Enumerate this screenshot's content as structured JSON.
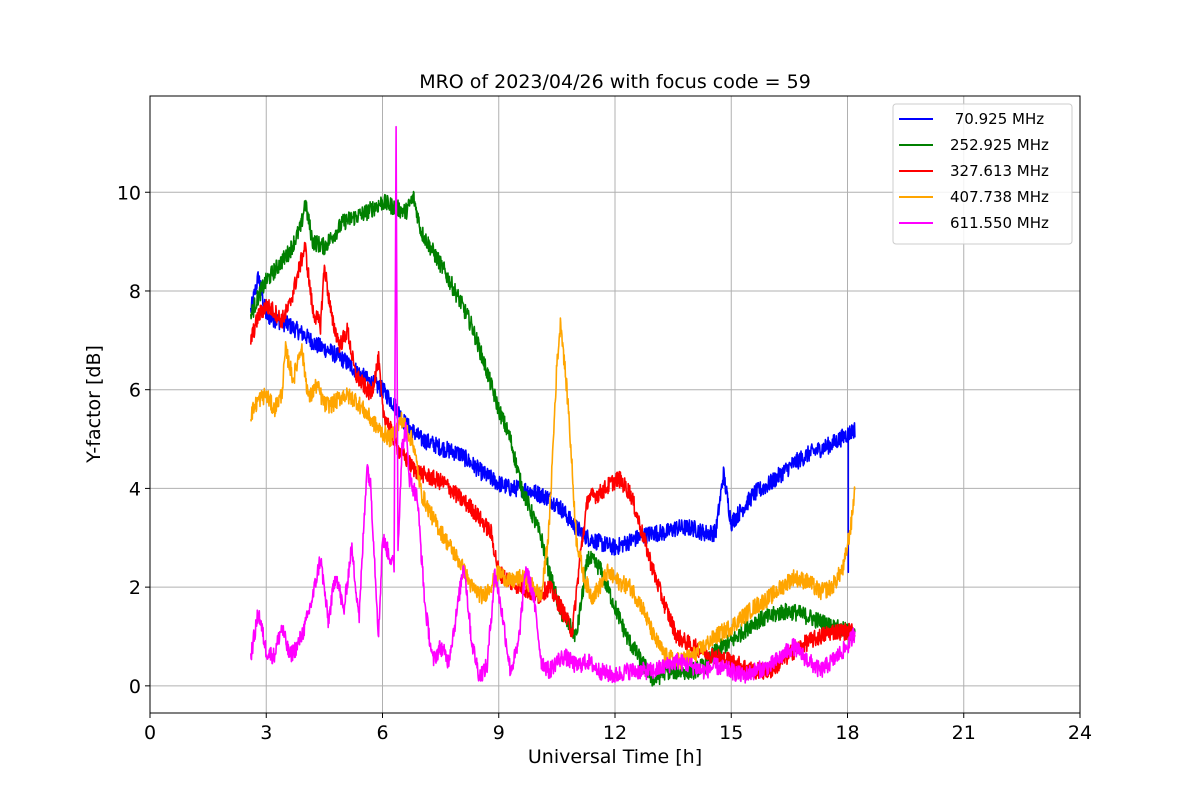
{
  "chart_data": {
    "type": "line",
    "title": "MRO of 2023/04/26 with focus code = 59",
    "xlabel": "Universal Time [h]",
    "ylabel": "Y-factor [dB]",
    "xlim": [
      0,
      24
    ],
    "ylim": [
      -0.55,
      11.95
    ],
    "xticks": [
      0,
      3,
      6,
      9,
      12,
      15,
      18,
      21,
      24
    ],
    "yticks": [
      0,
      2,
      4,
      6,
      8,
      10
    ],
    "grid": true,
    "legend_position": "top-right",
    "series": [
      {
        "name": " 70.925 MHz",
        "color": "#0000ff",
        "dips": true,
        "x": [
          2.6,
          2.8,
          3.0,
          3.3,
          3.6,
          4.0,
          4.3,
          4.6,
          5.0,
          5.3,
          5.6,
          6.0,
          6.3,
          6.6,
          7.0,
          7.3,
          7.6,
          8.0,
          8.3,
          8.6,
          9.0,
          9.3,
          9.6,
          10.0,
          10.3,
          10.6,
          11.0,
          11.3,
          11.6,
          12.0,
          12.3,
          12.6,
          13.0,
          13.3,
          13.6,
          14.0,
          14.3,
          14.6,
          14.8,
          15.0,
          15.3,
          15.6,
          16.0,
          16.3,
          16.6,
          17.0,
          17.3,
          17.6,
          18.0,
          18.2
        ],
        "y": [
          7.6,
          8.3,
          7.5,
          7.4,
          7.3,
          7.1,
          6.9,
          6.8,
          6.6,
          6.4,
          6.2,
          6.0,
          5.7,
          5.3,
          5.0,
          4.9,
          4.8,
          4.7,
          4.5,
          4.3,
          4.1,
          4.0,
          4.0,
          3.9,
          3.8,
          3.6,
          3.2,
          3.0,
          2.9,
          2.8,
          2.9,
          3.0,
          3.1,
          3.1,
          3.2,
          3.2,
          3.1,
          3.1,
          4.3,
          3.3,
          3.6,
          3.9,
          4.1,
          4.3,
          4.5,
          4.7,
          4.8,
          4.9,
          5.1,
          5.2
        ]
      },
      {
        "name": "252.925 MHz",
        "color": "#008000",
        "x": [
          2.6,
          2.8,
          3.0,
          3.3,
          3.6,
          3.9,
          4.0,
          4.2,
          4.5,
          4.8,
          5.0,
          5.3,
          5.6,
          6.0,
          6.3,
          6.6,
          6.8,
          7.0,
          7.3,
          7.6,
          8.0,
          8.3,
          8.6,
          9.0,
          9.3,
          9.6,
          9.9,
          10.1,
          10.3,
          10.6,
          11.0,
          11.3,
          11.6,
          12.0,
          12.3,
          12.6,
          13.0,
          13.3,
          13.6,
          14.0,
          14.3,
          14.6,
          15.0,
          15.3,
          15.6,
          16.0,
          16.3,
          16.6,
          17.0,
          17.3,
          17.6,
          18.0,
          18.2
        ],
        "y": [
          7.5,
          7.9,
          8.2,
          8.5,
          8.8,
          9.3,
          9.8,
          9.0,
          8.9,
          9.2,
          9.4,
          9.5,
          9.6,
          9.8,
          9.7,
          9.6,
          9.9,
          9.2,
          8.8,
          8.4,
          7.8,
          7.3,
          6.6,
          5.6,
          5.0,
          4.0,
          3.4,
          3.0,
          2.3,
          1.5,
          1.0,
          2.6,
          2.4,
          1.6,
          1.0,
          0.6,
          0.1,
          0.3,
          0.3,
          0.3,
          0.4,
          0.7,
          0.9,
          1.1,
          1.3,
          1.4,
          1.5,
          1.5,
          1.4,
          1.3,
          1.2,
          1.1,
          1.0
        ]
      },
      {
        "name": "327.613 MHz",
        "color": "#ff0000",
        "x": [
          2.6,
          2.8,
          3.0,
          3.2,
          3.4,
          3.6,
          3.8,
          4.0,
          4.2,
          4.4,
          4.5,
          4.7,
          4.9,
          5.1,
          5.3,
          5.5,
          5.7,
          5.9,
          6.0,
          6.2,
          6.4,
          6.6,
          6.8,
          7.0,
          7.3,
          7.6,
          8.0,
          8.3,
          8.6,
          8.8,
          9.0,
          9.3,
          9.6,
          9.8,
          10.0,
          10.3,
          10.6,
          10.9,
          11.1,
          11.3,
          11.6,
          11.9,
          12.1,
          12.4,
          12.7,
          13.0,
          13.3,
          13.6,
          14.0,
          14.3,
          14.6,
          15.0,
          15.3,
          15.6,
          16.0,
          16.3,
          16.6,
          17.0,
          17.3,
          17.6,
          18.0,
          18.2
        ],
        "y": [
          7.0,
          7.5,
          7.7,
          7.6,
          7.4,
          7.7,
          8.3,
          8.9,
          7.6,
          7.3,
          8.5,
          7.4,
          6.9,
          7.2,
          6.3,
          6.1,
          5.9,
          6.6,
          5.6,
          5.2,
          4.8,
          4.6,
          4.4,
          4.3,
          4.2,
          4.1,
          3.8,
          3.6,
          3.3,
          3.1,
          2.3,
          2.1,
          2.0,
          1.9,
          1.8,
          2.0,
          1.6,
          1.1,
          2.6,
          3.8,
          3.9,
          4.1,
          4.2,
          3.9,
          3.1,
          2.3,
          1.6,
          1.0,
          0.8,
          0.7,
          0.6,
          0.5,
          0.4,
          0.3,
          0.3,
          0.5,
          0.7,
          0.9,
          1.0,
          1.1,
          1.1,
          1.1
        ]
      },
      {
        "name": "407.738 MHz",
        "color": "#ffa500",
        "x": [
          2.6,
          2.8,
          3.0,
          3.2,
          3.4,
          3.5,
          3.7,
          3.9,
          4.1,
          4.3,
          4.5,
          4.7,
          5.0,
          5.3,
          5.6,
          5.9,
          6.2,
          6.5,
          6.8,
          7.0,
          7.3,
          7.6,
          8.0,
          8.3,
          8.6,
          9.0,
          9.3,
          9.6,
          9.9,
          10.1,
          10.3,
          10.5,
          10.6,
          10.8,
          11.0,
          11.2,
          11.4,
          11.6,
          11.8,
          12.1,
          12.4,
          12.7,
          13.0,
          13.3,
          13.6,
          14.0,
          14.3,
          14.6,
          15.0,
          15.3,
          15.6,
          16.0,
          16.3,
          16.6,
          17.0,
          17.3,
          17.6,
          17.9,
          18.1,
          18.2
        ],
        "y": [
          5.5,
          5.8,
          5.9,
          5.6,
          5.9,
          6.8,
          6.2,
          6.9,
          5.8,
          6.1,
          5.7,
          5.7,
          5.9,
          5.8,
          5.5,
          5.2,
          5.0,
          5.4,
          4.9,
          3.9,
          3.4,
          3.0,
          2.5,
          2.0,
          1.8,
          2.3,
          2.1,
          2.2,
          2.0,
          1.8,
          3.2,
          6.5,
          7.4,
          5.6,
          3.0,
          2.2,
          1.8,
          2.0,
          2.3,
          2.1,
          2.0,
          1.6,
          1.0,
          0.6,
          0.5,
          0.6,
          0.8,
          1.0,
          1.2,
          1.4,
          1.6,
          1.8,
          2.0,
          2.2,
          2.1,
          1.9,
          2.0,
          2.4,
          3.3,
          4.1
        ]
      },
      {
        "name": "611.550 MHz",
        "color": "#ff00ff",
        "x": [
          2.6,
          2.8,
          3.0,
          3.2,
          3.4,
          3.6,
          3.8,
          4.0,
          4.2,
          4.4,
          4.6,
          4.8,
          5.0,
          5.2,
          5.4,
          5.6,
          5.7,
          5.9,
          6.0,
          6.2,
          6.3,
          6.35,
          6.4,
          6.5,
          6.6,
          6.7,
          6.9,
          7.1,
          7.3,
          7.5,
          7.7,
          7.9,
          8.1,
          8.3,
          8.5,
          8.7,
          8.9,
          9.1,
          9.3,
          9.5,
          9.7,
          9.9,
          10.1,
          10.3,
          10.5,
          10.7,
          11.0,
          11.3,
          11.6,
          12.0,
          12.3,
          12.6,
          13.0,
          13.3,
          13.6,
          14.0,
          14.3,
          14.6,
          15.0,
          15.3,
          15.6,
          16.0,
          16.3,
          16.6,
          17.0,
          17.3,
          17.6,
          18.0,
          18.2
        ],
        "y": [
          0.6,
          1.5,
          0.7,
          0.6,
          1.2,
          0.6,
          0.8,
          1.2,
          1.8,
          2.6,
          1.3,
          2.3,
          1.5,
          2.8,
          1.4,
          4.5,
          4.0,
          1.0,
          3.0,
          2.6,
          2.4,
          11.4,
          2.8,
          4.8,
          5.2,
          4.2,
          3.8,
          1.6,
          0.5,
          0.8,
          0.5,
          1.4,
          2.5,
          0.9,
          0.2,
          0.4,
          2.3,
          1.4,
          0.3,
          0.8,
          2.4,
          1.8,
          0.5,
          0.3,
          0.5,
          0.6,
          0.4,
          0.5,
          0.3,
          0.2,
          0.3,
          0.3,
          0.3,
          0.4,
          0.5,
          0.4,
          0.3,
          0.4,
          0.3,
          0.2,
          0.3,
          0.4,
          0.6,
          0.8,
          0.5,
          0.3,
          0.5,
          0.8,
          1.1
        ]
      }
    ]
  }
}
